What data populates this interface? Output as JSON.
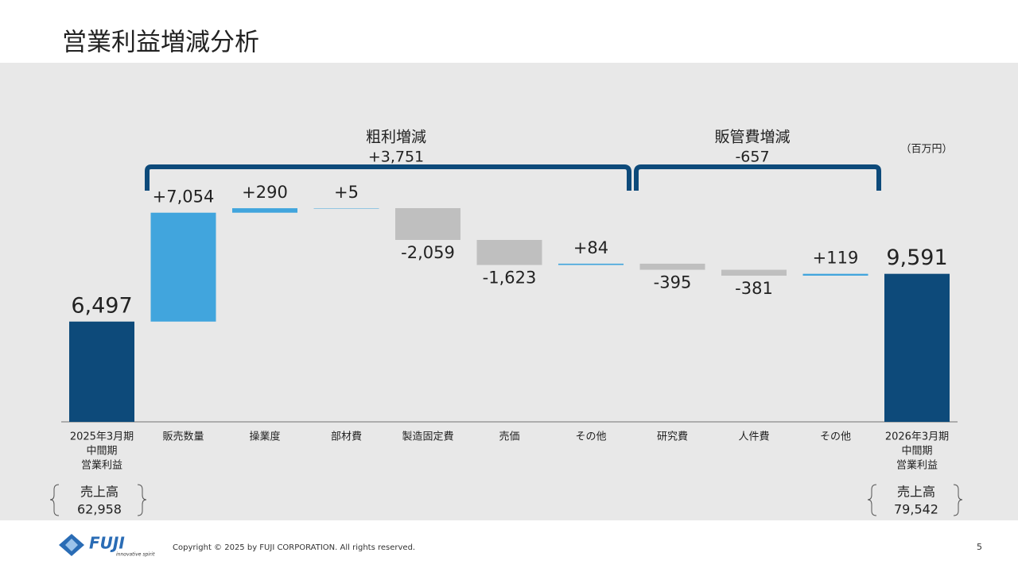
{
  "title": "営業利益増減分析",
  "chart_data": {
    "type": "waterfall",
    "categories": [
      [
        "2025年3月期",
        "中間期",
        "営業利益"
      ],
      [
        "販売数量"
      ],
      [
        "操業度"
      ],
      [
        "部材費"
      ],
      [
        "製造固定費"
      ],
      [
        "売価"
      ],
      [
        "その他"
      ],
      [
        "研究費"
      ],
      [
        "人件費"
      ],
      [
        "その他"
      ],
      [
        "2026年3月期",
        "中間期",
        "営業利益"
      ]
    ],
    "values": [
      6497,
      7054,
      290,
      5,
      -2059,
      -1623,
      84,
      -395,
      -381,
      119,
      9591
    ],
    "value_labels": [
      "6,497",
      "+7,054",
      "+290",
      "+5",
      "-2,059",
      "-1,623",
      "+84",
      "-395",
      "-381",
      "+119",
      "9,591"
    ],
    "total": [
      true,
      false,
      false,
      false,
      false,
      false,
      false,
      false,
      false,
      false,
      true
    ],
    "colors": {
      "total": "#0d4a7a",
      "increase": "#41a5dd",
      "decrease": "#bfbfbf"
    },
    "unit": "（百万円）",
    "groups": [
      {
        "label": "粗利増減",
        "total": "+3,751"
      },
      {
        "label": "販管費増減",
        "total": "-657"
      }
    ]
  },
  "sales": [
    {
      "label": "売上高",
      "value": "62,958"
    },
    {
      "label": "売上高",
      "value": "79,542"
    }
  ],
  "footer": {
    "logo": "FUJI",
    "tagline": "innovative spirit",
    "copyright": "Copyright © 2025 by FUJI CORPORATION. All rights reserved.",
    "page": "5"
  }
}
